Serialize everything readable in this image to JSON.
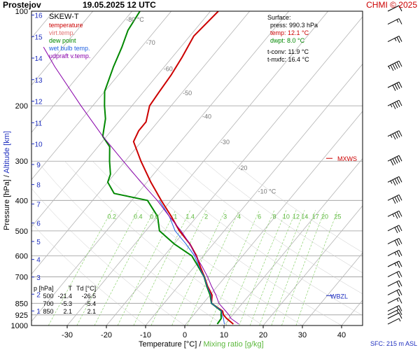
{
  "header": {
    "station": "Prostejov",
    "date": "19.05.2025 12 UTC",
    "credit": "CHMI © 2025"
  },
  "legend": {
    "title": "SKEW-T",
    "items": [
      {
        "label": "temperature",
        "color": "#cc0000"
      },
      {
        "label": "virt.temp.",
        "color": "#e07070"
      },
      {
        "label": "dew point",
        "color": "#008800"
      },
      {
        "label": "wet bulb temp.",
        "color": "#2060e0"
      },
      {
        "label": "udpraft v.temp.",
        "color": "#8800aa"
      }
    ]
  },
  "surface": {
    "title": "Surface:",
    "lines": [
      {
        "text": "press: 990.3 hPa",
        "color": "#000000"
      },
      {
        "text": "temp: 12.1 °C",
        "color": "#cc0000"
      },
      {
        "text": "dwpt: 8.0 °C",
        "color": "#008800"
      },
      {
        "text": "t-conv: 11.9 °C",
        "color": "#000000"
      },
      {
        "text": "t-mxfc: 16.4 °C",
        "color": "#000000"
      }
    ]
  },
  "stats": {
    "header": [
      "p [hPa]",
      "T",
      "Td [°C]"
    ],
    "rows": [
      [
        "500",
        "-21.4",
        "-26.5"
      ],
      [
        "700",
        "-5.3",
        "-5.4"
      ],
      [
        "850",
        "2.1",
        "2.1"
      ]
    ]
  },
  "axes": {
    "xlabel_temperature": "Temperature [°C]",
    "xlabel_sep": "/",
    "xlabel_mixing": "Mixing ratio [g/kg]",
    "ylabel_pressure": "Pressure [hPa]",
    "ylabel_sep": "/",
    "ylabel_altitude": "Altitude [km]",
    "sfc_note": "SFC: 215 m ASL"
  },
  "colors": {
    "temperature": "#cc0000",
    "dewpoint": "#008800",
    "wetbulb": "#2060e0",
    "parcel": "#8800aa",
    "mixing": "#7ccc5a",
    "altitude": "#1f2fbf",
    "isotherm": "#999999"
  },
  "chart_data": {
    "type": "line",
    "title": "SKEW-T",
    "xlabel": "Temperature [°C]",
    "ylabel": "Pressure [hPa]",
    "y_scale": "log",
    "pressure_range": [
      1000,
      100
    ],
    "temperature_range": [
      -35,
      45
    ],
    "pressure_ticks": [
      100,
      200,
      300,
      400,
      500,
      600,
      700,
      850,
      925,
      1000
    ],
    "temperature_ticks": [
      -30,
      -20,
      -10,
      0,
      10,
      20,
      30,
      40
    ],
    "altitude_ticks_km": [
      1,
      2,
      3,
      4,
      5,
      6,
      7,
      8,
      9,
      10,
      11,
      12,
      13,
      14,
      15,
      16
    ],
    "isotherm_labels": [
      "-80 °C",
      "-70",
      "-60",
      "-50",
      "-40",
      "-30",
      "-20",
      "-10 °C"
    ],
    "mixing_ratio_labels": [
      "0.2",
      "0.4",
      "0.6",
      "1",
      "1.4",
      "2",
      "3",
      "4",
      "6",
      "8",
      "10",
      "12",
      "14",
      "17",
      "20",
      "25"
    ],
    "level_markers": [
      {
        "label": "MXWS",
        "pressure": 300
      },
      {
        "label": "WBZL",
        "pressure": 820
      }
    ],
    "series": [
      {
        "name": "temperature",
        "points": [
          [
            990,
            12.1
          ],
          [
            950,
            9.2
          ],
          [
            925,
            7.6
          ],
          [
            900,
            6.6
          ],
          [
            850,
            2.1
          ],
          [
            800,
            0.5
          ],
          [
            750,
            -2.5
          ],
          [
            700,
            -5.3
          ],
          [
            650,
            -8.5
          ],
          [
            600,
            -11.8
          ],
          [
            550,
            -16.0
          ],
          [
            500,
            -21.4
          ],
          [
            450,
            -26.5
          ],
          [
            400,
            -32.5
          ],
          [
            350,
            -39.0
          ],
          [
            300,
            -46.0
          ],
          [
            260,
            -52.0
          ],
          [
            240,
            -53.0
          ],
          [
            225,
            -53.0
          ],
          [
            200,
            -55.5
          ],
          [
            180,
            -56.0
          ],
          [
            160,
            -56.5
          ],
          [
            140,
            -57.5
          ],
          [
            120,
            -59.0
          ],
          [
            100,
            -58.0
          ]
        ]
      },
      {
        "name": "dew point",
        "points": [
          [
            990,
            8.0
          ],
          [
            950,
            7.8
          ],
          [
            925,
            7.0
          ],
          [
            900,
            6.3
          ],
          [
            850,
            2.1
          ],
          [
            800,
            0.0
          ],
          [
            750,
            -2.7
          ],
          [
            700,
            -5.4
          ],
          [
            650,
            -9.0
          ],
          [
            600,
            -13.0
          ],
          [
            550,
            -20.0
          ],
          [
            500,
            -26.5
          ],
          [
            450,
            -30.0
          ],
          [
            400,
            -36.0
          ],
          [
            380,
            -46.0
          ],
          [
            350,
            -50.0
          ],
          [
            330,
            -51.0
          ],
          [
            300,
            -54.0
          ],
          [
            270,
            -57.0
          ],
          [
            250,
            -61.0
          ],
          [
            220,
            -64.0
          ],
          [
            200,
            -67.0
          ],
          [
            180,
            -70.0
          ],
          [
            150,
            -73.0
          ],
          [
            130,
            -75.0
          ],
          [
            115,
            -77.0
          ],
          [
            100,
            -78.0
          ]
        ]
      },
      {
        "name": "wet bulb temp.",
        "points": [
          [
            990,
            9.8
          ],
          [
            950,
            8.4
          ],
          [
            925,
            7.2
          ],
          [
            900,
            6.4
          ],
          [
            850,
            2.1
          ],
          [
            800,
            0.2
          ],
          [
            750,
            -2.6
          ],
          [
            700,
            -5.4
          ],
          [
            650,
            -8.8
          ],
          [
            600,
            -12.3
          ],
          [
            550,
            -17.0
          ],
          [
            500,
            -22.5
          ],
          [
            450,
            -27.0
          ],
          [
            400,
            -33.0
          ]
        ]
      },
      {
        "name": "udpraft v.temp.",
        "points": [
          [
            990,
            13.5
          ],
          [
            950,
            10.3
          ],
          [
            925,
            9.0
          ],
          [
            900,
            7.4
          ],
          [
            850,
            4.0
          ],
          [
            800,
            1.5
          ],
          [
            750,
            -1.5
          ],
          [
            700,
            -4.5
          ],
          [
            650,
            -8.0
          ],
          [
            600,
            -12.0
          ],
          [
            550,
            -16.0
          ],
          [
            500,
            -21.0
          ],
          [
            450,
            -27.0
          ],
          [
            400,
            -33.5
          ],
          [
            350,
            -41.5
          ],
          [
            300,
            -50.5
          ],
          [
            250,
            -61.0
          ],
          [
            200,
            -73.0
          ],
          [
            150,
            -88.0
          ],
          [
            130,
            -95.0
          ]
        ]
      }
    ],
    "wind_barbs_kt": [
      {
        "pressure": 990,
        "speed": 5
      },
      {
        "pressure": 950,
        "speed": 10
      },
      {
        "pressure": 925,
        "speed": 15
      },
      {
        "pressure": 900,
        "speed": 15
      },
      {
        "pressure": 850,
        "speed": 15
      },
      {
        "pressure": 800,
        "speed": 20
      },
      {
        "pressure": 750,
        "speed": 20
      },
      {
        "pressure": 700,
        "speed": 20
      },
      {
        "pressure": 650,
        "speed": 25
      },
      {
        "pressure": 600,
        "speed": 25
      },
      {
        "pressure": 550,
        "speed": 30
      },
      {
        "pressure": 500,
        "speed": 30
      },
      {
        "pressure": 450,
        "speed": 35
      },
      {
        "pressure": 400,
        "speed": 40
      },
      {
        "pressure": 350,
        "speed": 45
      },
      {
        "pressure": 300,
        "speed": 50
      },
      {
        "pressure": 250,
        "speed": 45
      },
      {
        "pressure": 200,
        "speed": 45
      },
      {
        "pressure": 175,
        "speed": 40
      },
      {
        "pressure": 150,
        "speed": 55
      },
      {
        "pressure": 125,
        "speed": 25
      },
      {
        "pressure": 110,
        "speed": 15
      },
      {
        "pressure": 100,
        "speed": 10
      }
    ]
  }
}
